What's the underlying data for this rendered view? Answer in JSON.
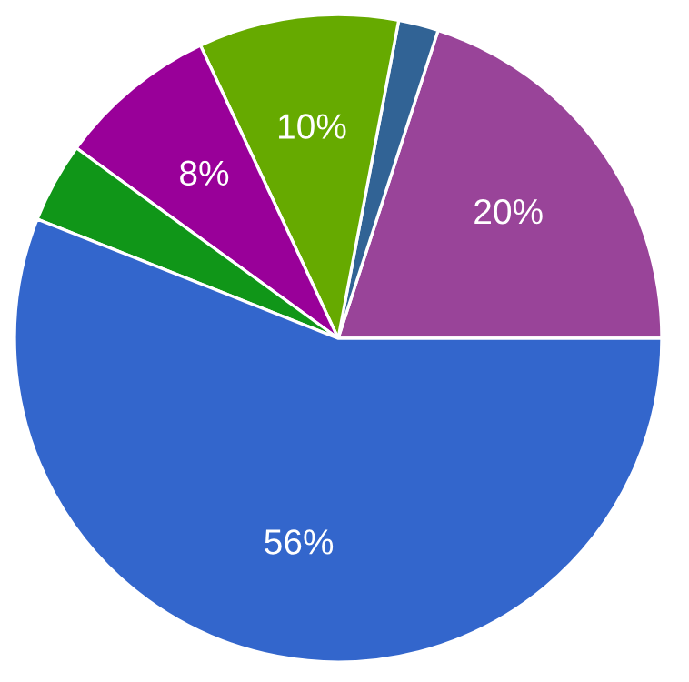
{
  "chart_data": {
    "type": "pie",
    "categories": [
      null,
      null,
      null,
      null,
      null,
      null
    ],
    "values": [
      20,
      2,
      10,
      8,
      4,
      56
    ],
    "colors": [
      "#994499",
      "#316395",
      "#66aa00",
      "#990099",
      "#109618",
      "#3366cc"
    ],
    "value_labels": [
      "20%",
      null,
      "10%",
      "8%",
      null,
      "56%"
    ]
  }
}
